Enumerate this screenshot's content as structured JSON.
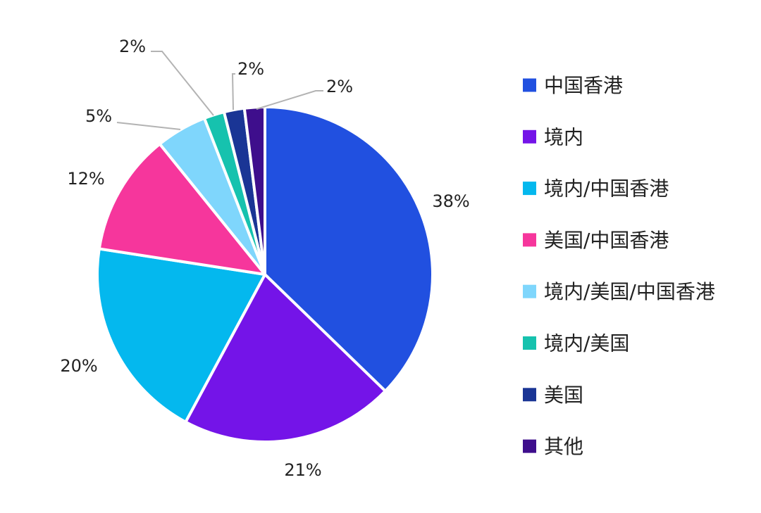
{
  "chart_data": {
    "type": "pie",
    "categories": [
      "中国香港",
      "境内",
      "境内/中国香港",
      "美国/中国香港",
      "境内/美国/中国香港",
      "境内/美国",
      "美国",
      "其他"
    ],
    "values": [
      38,
      21,
      20,
      12,
      5,
      2,
      2,
      2
    ],
    "labels": [
      "38%",
      "21%",
      "20%",
      "12%",
      "5%",
      "2%",
      "2%",
      "2%"
    ],
    "colors": [
      "#2150e0",
      "#7414e8",
      "#04b8ee",
      "#f6369c",
      "#7fd6fc",
      "#16c2ae",
      "#1a3595",
      "#3e0e8c"
    ],
    "legend": {
      "placement": "right"
    }
  }
}
